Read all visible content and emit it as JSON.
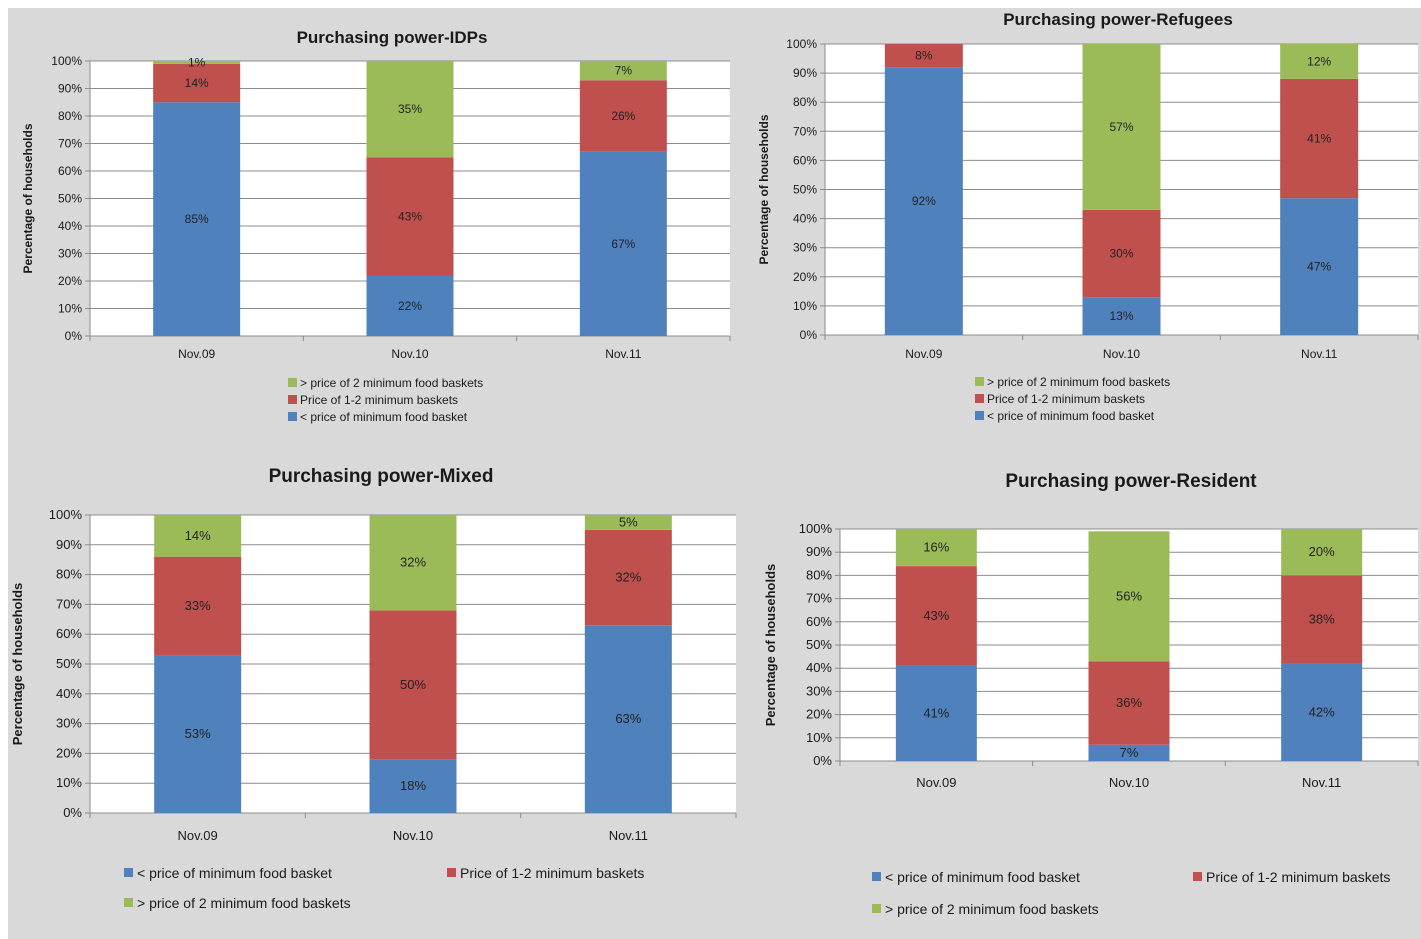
{
  "colors": {
    "below_min": "#4f81bd",
    "one_to_two": "#c0504d",
    "above_two": "#9bbb59"
  },
  "chart_data": [
    {
      "type": "bar",
      "stacked": true,
      "title": "Purchasing power-IDPs",
      "ylabel": "Percentage of households",
      "ylim": [
        0,
        100
      ],
      "yticks": [
        "0%",
        "10%",
        "20%",
        "30%",
        "40%",
        "50%",
        "60%",
        "70%",
        "80%",
        "90%",
        "100%"
      ],
      "categories": [
        "Nov.09",
        "Nov.10",
        "Nov.11"
      ],
      "series": [
        {
          "key": "below_min",
          "name": "< price of minimum food basket",
          "values": [
            85,
            22,
            67
          ],
          "labels": [
            "85%",
            "22%",
            "67%"
          ]
        },
        {
          "key": "one_to_two",
          "name": "Price of 1-2 minimum baskets",
          "values": [
            14,
            43,
            26
          ],
          "labels": [
            "14%",
            "43%",
            "26%"
          ]
        },
        {
          "key": "above_two",
          "name": "> price of 2 minimum food baskets",
          "values": [
            1,
            35,
            7
          ],
          "labels": [
            "1%",
            "35%",
            "7%"
          ]
        }
      ],
      "legend": "bottom-stacked"
    },
    {
      "type": "bar",
      "stacked": true,
      "title": "Purchasing power-Refugees",
      "ylabel": "Percentage of households",
      "ylim": [
        0,
        100
      ],
      "yticks": [
        "0%",
        "10%",
        "20%",
        "30%",
        "40%",
        "50%",
        "60%",
        "70%",
        "80%",
        "90%",
        "100%"
      ],
      "categories": [
        "Nov.09",
        "Nov.10",
        "Nov.11"
      ],
      "series": [
        {
          "key": "below_min",
          "name": "< price of minimum food basket",
          "values": [
            92,
            13,
            47
          ],
          "labels": [
            "92%",
            "13%",
            "47%"
          ]
        },
        {
          "key": "one_to_two",
          "name": "Price of 1-2 minimum baskets",
          "values": [
            8,
            30,
            41
          ],
          "labels": [
            "8%",
            "30%",
            "41%"
          ]
        },
        {
          "key": "above_two",
          "name": "> price of 2 minimum food baskets",
          "values": [
            0,
            57,
            12
          ],
          "labels": [
            "",
            "57%",
            "12%"
          ]
        }
      ],
      "legend": "bottom-stacked"
    },
    {
      "type": "bar",
      "stacked": true,
      "title": "Purchasing power-Mixed",
      "ylabel": "Percentage of households",
      "ylim": [
        0,
        100
      ],
      "yticks": [
        "0%",
        "10%",
        "20%",
        "30%",
        "40%",
        "50%",
        "60%",
        "70%",
        "80%",
        "90%",
        "100%"
      ],
      "categories": [
        "Nov.09",
        "Nov.10",
        "Nov.11"
      ],
      "series": [
        {
          "key": "below_min",
          "name": "< price of minimum food basket",
          "values": [
            53,
            18,
            63
          ],
          "labels": [
            "53%",
            "18%",
            "63%"
          ]
        },
        {
          "key": "one_to_two",
          "name": "Price of 1-2 minimum baskets",
          "values": [
            33,
            50,
            32
          ],
          "labels": [
            "33%",
            "50%",
            "32%"
          ]
        },
        {
          "key": "above_two",
          "name": "> price of 2 minimum food baskets",
          "values": [
            14,
            32,
            5
          ],
          "labels": [
            "14%",
            "32%",
            "5%"
          ]
        }
      ],
      "legend": "bottom-wrapped"
    },
    {
      "type": "bar",
      "stacked": true,
      "title": "Purchasing power-Resident",
      "ylabel": "Percentage of households",
      "ylim": [
        0,
        100
      ],
      "yticks": [
        "0%",
        "10%",
        "20%",
        "30%",
        "40%",
        "50%",
        "60%",
        "70%",
        "80%",
        "90%",
        "100%"
      ],
      "categories": [
        "Nov.09",
        "Nov.10",
        "Nov.11"
      ],
      "series": [
        {
          "key": "below_min",
          "name": "< price of minimum food basket",
          "values": [
            41,
            7,
            42
          ],
          "labels": [
            "41%",
            "7%",
            "42%"
          ]
        },
        {
          "key": "one_to_two",
          "name": "Price of 1-2 minimum baskets",
          "values": [
            43,
            36,
            38
          ],
          "labels": [
            "43%",
            "36%",
            "38%"
          ]
        },
        {
          "key": "above_two",
          "name": "> price of 2 minimum food baskets",
          "values": [
            16,
            56,
            20
          ],
          "labels": [
            "16%",
            "56%",
            "20%"
          ]
        }
      ],
      "legend": "bottom-wrapped"
    }
  ]
}
